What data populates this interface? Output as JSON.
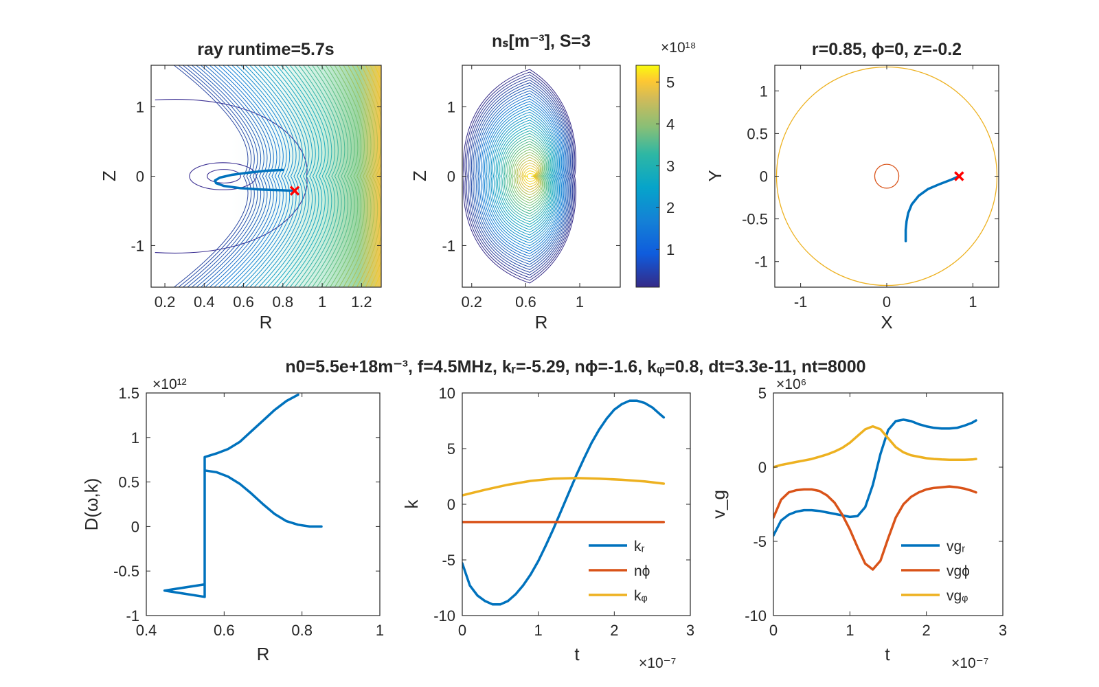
{
  "figure_title": "n0=5.5e+18m⁻³, f=4.5MHz, kᵣ=-5.29, nϕ=-1.6, kᵩ=0.8, dt=3.3e-11, nt=8000",
  "colors": {
    "blue": "#0072BD",
    "orange": "#D95319",
    "yellow": "#EDB120",
    "red": "#FF0000",
    "axis": "#262626"
  },
  "chart_data": [
    {
      "id": "p1",
      "type": "contour",
      "title": "ray runtime=5.7s",
      "xlabel": "R",
      "ylabel": "Z",
      "xlim": [
        0.13,
        1.3
      ],
      "ylim": [
        -1.6,
        1.6
      ],
      "xticks": [
        0.2,
        0.4,
        0.6,
        0.8,
        1,
        1.2
      ],
      "xtick_labels": [
        "0.2",
        "0.4",
        "0.6",
        "0.8",
        "1",
        "1.2"
      ],
      "yticks": [
        -1,
        0,
        1
      ],
      "ytick_labels": [
        "-1",
        "0",
        "1"
      ],
      "contour_center": [
        0.5,
        0
      ],
      "ray": {
        "R": [
          0.8,
          0.72,
          0.62,
          0.54,
          0.48,
          0.455,
          0.46,
          0.5,
          0.58,
          0.68,
          0.78,
          0.86
        ],
        "Z": [
          0.09,
          0.08,
          0.05,
          0.02,
          -0.02,
          -0.06,
          -0.1,
          -0.14,
          -0.17,
          -0.19,
          -0.2,
          -0.21
        ]
      },
      "end_marker": [
        0.86,
        -0.21
      ]
    },
    {
      "id": "p2",
      "type": "contour",
      "title": "nₛ[m⁻³], S=3",
      "xlabel": "R",
      "ylabel": "Z",
      "xlim": [
        0.13,
        1.3
      ],
      "ylim": [
        -1.6,
        1.6
      ],
      "xticks": [
        0.2,
        0.6,
        1
      ],
      "xtick_labels": [
        "0.2",
        "0.6",
        "1"
      ],
      "yticks": [
        -1,
        0,
        1
      ],
      "ytick_labels": [
        "-1",
        "0",
        "1"
      ],
      "peak": [
        0.63,
        0
      ],
      "colorbar": {
        "exponent": "×10¹⁸",
        "min": 0.1,
        "max": 5.4,
        "ticks": [
          1,
          2,
          3,
          4,
          5
        ],
        "tick_labels": [
          "1",
          "2",
          "3",
          "4",
          "5"
        ]
      }
    },
    {
      "id": "p3",
      "type": "line",
      "title": "r=0.85, ϕ=0, z=-0.2",
      "xlabel": "X",
      "ylabel": "Y",
      "xlim": [
        -1.3,
        1.3
      ],
      "ylim": [
        -1.3,
        1.3
      ],
      "xticks": [
        -1,
        0,
        1
      ],
      "xtick_labels": [
        "-1",
        "0",
        "1"
      ],
      "yticks": [
        -1,
        -0.5,
        0,
        0.5,
        1
      ],
      "ytick_labels": [
        "-1",
        "-0.5",
        "0",
        "0.5",
        "1"
      ],
      "outer_circle_radius": 1.28,
      "inner_circle_radius": 0.14,
      "ray": {
        "X": [
          0.84,
          0.75,
          0.62,
          0.48,
          0.37,
          0.29,
          0.25,
          0.23,
          0.22,
          0.22
        ],
        "Y": [
          0.0,
          -0.04,
          -0.09,
          -0.15,
          -0.23,
          -0.33,
          -0.43,
          -0.53,
          -0.63,
          -0.76
        ]
      },
      "end_marker": [
        0.84,
        0.0
      ]
    },
    {
      "id": "p4",
      "type": "line",
      "title": "",
      "xlabel": "R",
      "ylabel": "D(ω,k)",
      "exponent": "×10¹²",
      "xlim": [
        0.4,
        1
      ],
      "ylim": [
        -1,
        1.5
      ],
      "xticks": [
        0.4,
        0.6,
        0.8,
        1
      ],
      "xtick_labels": [
        "0.4",
        "0.6",
        "0.8",
        "1"
      ],
      "yticks": [
        -1,
        -0.5,
        0,
        0.5,
        1,
        1.5
      ],
      "ytick_labels": [
        "-1",
        "-0.5",
        "0",
        "0.5",
        "1",
        "1.5"
      ],
      "series": [
        {
          "x": [
            0.85,
            0.82,
            0.79,
            0.76,
            0.73,
            0.7,
            0.67,
            0.64,
            0.61,
            0.58,
            0.55,
            0.55,
            0.447,
            0.55,
            0.55,
            0.58,
            0.61,
            0.64,
            0.67,
            0.7,
            0.73,
            0.76,
            0.79
          ],
          "y": [
            0.0,
            0.0,
            0.02,
            0.06,
            0.14,
            0.25,
            0.37,
            0.48,
            0.56,
            0.61,
            0.63,
            -0.65,
            -0.72,
            -0.79,
            0.78,
            0.82,
            0.87,
            0.95,
            1.07,
            1.19,
            1.31,
            1.41,
            1.48
          ]
        }
      ]
    },
    {
      "id": "p5",
      "type": "line",
      "title": "",
      "xlabel": "t",
      "ylabel": "k",
      "exponent": "×10⁻⁷",
      "xlim": [
        0,
        3
      ],
      "ylim": [
        -10,
        10
      ],
      "xticks": [
        0,
        1,
        2,
        3
      ],
      "xtick_labels": [
        "0",
        "1",
        "2",
        "3"
      ],
      "yticks": [
        -10,
        -5,
        0,
        5,
        10
      ],
      "ytick_labels": [
        "-10",
        "-5",
        "0",
        "5",
        "10"
      ],
      "legend": [
        "kᵣ",
        "nϕ",
        "kᵩ"
      ],
      "legend_position": "bottom-right",
      "series": [
        {
          "name": "kᵣ",
          "x": [
            0,
            0.1,
            0.2,
            0.3,
            0.4,
            0.5,
            0.6,
            0.7,
            0.8,
            0.9,
            1.0,
            1.1,
            1.2,
            1.3,
            1.4,
            1.5,
            1.6,
            1.7,
            1.8,
            1.9,
            2.0,
            2.1,
            2.2,
            2.3,
            2.4,
            2.5,
            2.6,
            2.65
          ],
          "y": [
            -5.3,
            -7.3,
            -8.2,
            -8.7,
            -9.0,
            -9.0,
            -8.7,
            -8.1,
            -7.3,
            -6.3,
            -5.1,
            -3.7,
            -2.2,
            -0.6,
            1.0,
            2.6,
            4.1,
            5.5,
            6.7,
            7.7,
            8.5,
            9.0,
            9.3,
            9.3,
            9.1,
            8.7,
            8.1,
            7.8
          ]
        },
        {
          "name": "nϕ",
          "x": [
            0,
            2.65
          ],
          "y": [
            -1.6,
            -1.6
          ]
        },
        {
          "name": "kᵩ",
          "x": [
            0,
            0.3,
            0.6,
            0.9,
            1.2,
            1.5,
            1.8,
            2.1,
            2.4,
            2.65
          ],
          "y": [
            0.8,
            1.3,
            1.75,
            2.1,
            2.3,
            2.35,
            2.3,
            2.2,
            2.05,
            1.85
          ]
        }
      ]
    },
    {
      "id": "p6",
      "type": "line",
      "title": "",
      "xlabel": "t",
      "ylabel": "v_g",
      "exponent_y": "×10⁶",
      "exponent": "×10⁻⁷",
      "xlim": [
        0,
        3
      ],
      "ylim": [
        -10,
        5
      ],
      "xticks": [
        0,
        1,
        2,
        3
      ],
      "xtick_labels": [
        "0",
        "1",
        "2",
        "3"
      ],
      "yticks": [
        -10,
        -5,
        0,
        5
      ],
      "ytick_labels": [
        "-10",
        "-5",
        "0",
        "5"
      ],
      "legend": [
        "vgᵣ",
        "vgϕ",
        "vgᵩ"
      ],
      "legend_position": "bottom-right",
      "series": [
        {
          "name": "vgᵣ",
          "x": [
            0,
            0.1,
            0.2,
            0.3,
            0.4,
            0.5,
            0.6,
            0.7,
            0.8,
            0.9,
            1.0,
            1.1,
            1.2,
            1.3,
            1.4,
            1.5,
            1.6,
            1.7,
            1.8,
            1.9,
            2.0,
            2.1,
            2.2,
            2.3,
            2.4,
            2.5,
            2.6,
            2.65
          ],
          "y": [
            -4.6,
            -3.6,
            -3.2,
            -3.0,
            -2.9,
            -2.9,
            -2.95,
            -3.05,
            -3.15,
            -3.25,
            -3.35,
            -3.3,
            -2.7,
            -1.2,
            0.9,
            2.5,
            3.1,
            3.2,
            3.1,
            2.9,
            2.75,
            2.65,
            2.6,
            2.6,
            2.65,
            2.8,
            3.0,
            3.15
          ]
        },
        {
          "name": "vgϕ",
          "x": [
            0,
            0.1,
            0.2,
            0.3,
            0.4,
            0.5,
            0.6,
            0.7,
            0.8,
            0.9,
            1.0,
            1.1,
            1.2,
            1.3,
            1.4,
            1.5,
            1.6,
            1.7,
            1.8,
            1.9,
            2.0,
            2.1,
            2.2,
            2.3,
            2.4,
            2.5,
            2.6,
            2.65
          ],
          "y": [
            -3.4,
            -2.2,
            -1.7,
            -1.55,
            -1.5,
            -1.5,
            -1.6,
            -1.9,
            -2.4,
            -3.2,
            -4.2,
            -5.4,
            -6.5,
            -6.9,
            -6.3,
            -4.8,
            -3.4,
            -2.5,
            -2.0,
            -1.7,
            -1.5,
            -1.4,
            -1.35,
            -1.3,
            -1.35,
            -1.45,
            -1.6,
            -1.7
          ]
        },
        {
          "name": "vgᵩ",
          "x": [
            0,
            0.1,
            0.2,
            0.3,
            0.4,
            0.5,
            0.6,
            0.7,
            0.8,
            0.9,
            1.0,
            1.1,
            1.2,
            1.3,
            1.4,
            1.5,
            1.6,
            1.7,
            1.8,
            1.9,
            2.0,
            2.1,
            2.2,
            2.3,
            2.4,
            2.5,
            2.6,
            2.65
          ],
          "y": [
            0.0,
            0.15,
            0.25,
            0.35,
            0.45,
            0.55,
            0.7,
            0.85,
            1.05,
            1.3,
            1.65,
            2.1,
            2.55,
            2.75,
            2.55,
            1.95,
            1.35,
            1.0,
            0.8,
            0.7,
            0.6,
            0.55,
            0.52,
            0.5,
            0.5,
            0.5,
            0.52,
            0.55
          ]
        }
      ]
    }
  ]
}
